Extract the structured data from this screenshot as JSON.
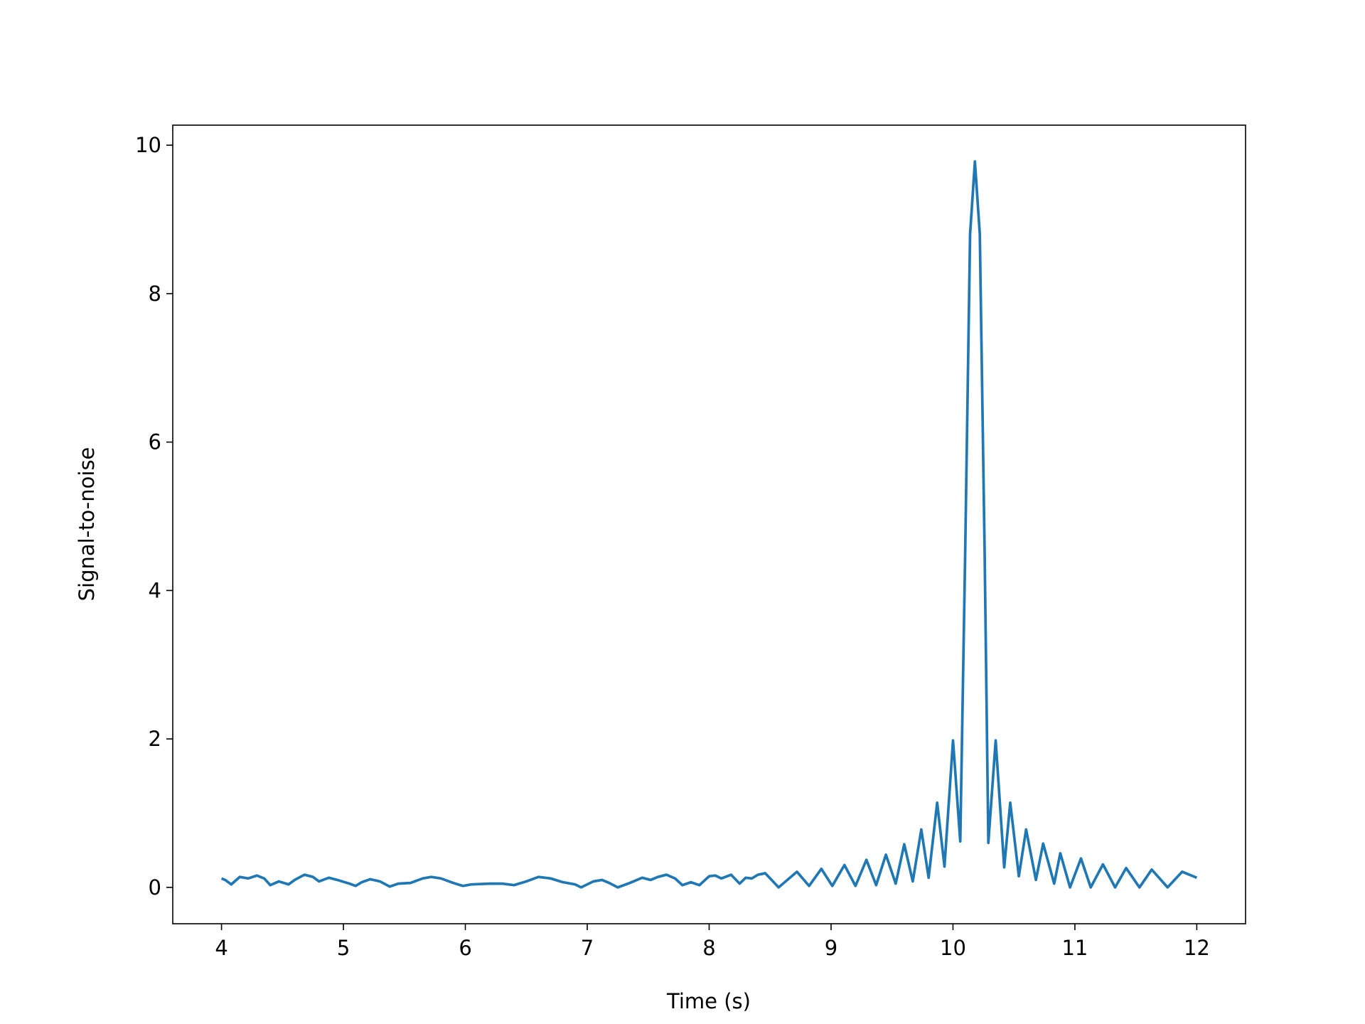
{
  "chart_data": {
    "type": "line",
    "xlabel": "Time (s)",
    "ylabel": "Signal-to-noise",
    "x": [
      4.0,
      4.03,
      4.08,
      4.15,
      4.22,
      4.29,
      4.35,
      4.4,
      4.47,
      4.55,
      4.6,
      4.68,
      4.75,
      4.8,
      4.88,
      4.95,
      5.05,
      5.1,
      5.15,
      5.22,
      5.3,
      5.38,
      5.45,
      5.55,
      5.65,
      5.72,
      5.8,
      5.9,
      5.98,
      6.05,
      6.2,
      6.3,
      6.4,
      6.5,
      6.6,
      6.7,
      6.8,
      6.9,
      6.95,
      7.05,
      7.12,
      7.18,
      7.25,
      7.35,
      7.45,
      7.52,
      7.58,
      7.65,
      7.72,
      7.78,
      7.85,
      7.92,
      8.0,
      8.05,
      8.1,
      8.18,
      8.25,
      8.3,
      8.35,
      8.4,
      8.46,
      8.57,
      8.72,
      8.82,
      8.92,
      9.01,
      9.11,
      9.2,
      9.29,
      9.37,
      9.45,
      9.53,
      9.6,
      9.67,
      9.74,
      9.8,
      9.87,
      9.93,
      10.0,
      10.06,
      10.1,
      10.14,
      10.18,
      10.22,
      10.26,
      10.29,
      10.35,
      10.42,
      10.47,
      10.54,
      10.6,
      10.68,
      10.74,
      10.83,
      10.88,
      10.96,
      11.05,
      11.13,
      11.23,
      11.33,
      11.42,
      11.53,
      11.63,
      11.76,
      11.88,
      12.0
    ],
    "series": [
      {
        "name": "Signal-to-noise",
        "color": "#1f77b4",
        "values": [
          0.12,
          0.1,
          0.04,
          0.14,
          0.12,
          0.16,
          0.12,
          0.03,
          0.08,
          0.04,
          0.1,
          0.17,
          0.14,
          0.08,
          0.13,
          0.1,
          0.05,
          0.02,
          0.07,
          0.11,
          0.08,
          0.01,
          0.05,
          0.06,
          0.12,
          0.14,
          0.12,
          0.06,
          0.02,
          0.04,
          0.05,
          0.05,
          0.03,
          0.08,
          0.14,
          0.12,
          0.07,
          0.04,
          0.0,
          0.08,
          0.1,
          0.06,
          0.0,
          0.06,
          0.13,
          0.1,
          0.14,
          0.17,
          0.12,
          0.03,
          0.07,
          0.03,
          0.15,
          0.16,
          0.12,
          0.17,
          0.05,
          0.13,
          0.12,
          0.17,
          0.19,
          0.0,
          0.21,
          0.02,
          0.25,
          0.02,
          0.3,
          0.02,
          0.37,
          0.03,
          0.44,
          0.05,
          0.58,
          0.08,
          0.78,
          0.13,
          1.14,
          0.28,
          1.98,
          0.62,
          4.5,
          8.8,
          9.78,
          8.8,
          4.5,
          0.6,
          1.98,
          0.27,
          1.14,
          0.15,
          0.78,
          0.1,
          0.59,
          0.05,
          0.46,
          0.0,
          0.39,
          0.0,
          0.31,
          0.0,
          0.26,
          0.0,
          0.24,
          0.0,
          0.21,
          0.13
        ]
      }
    ],
    "xlim": [
      3.6,
      12.4
    ],
    "ylim": [
      -0.49,
      10.27
    ],
    "xticks": [
      4,
      5,
      6,
      7,
      8,
      9,
      10,
      11,
      12
    ],
    "yticks": [
      0,
      2,
      4,
      6,
      8,
      10
    ]
  }
}
